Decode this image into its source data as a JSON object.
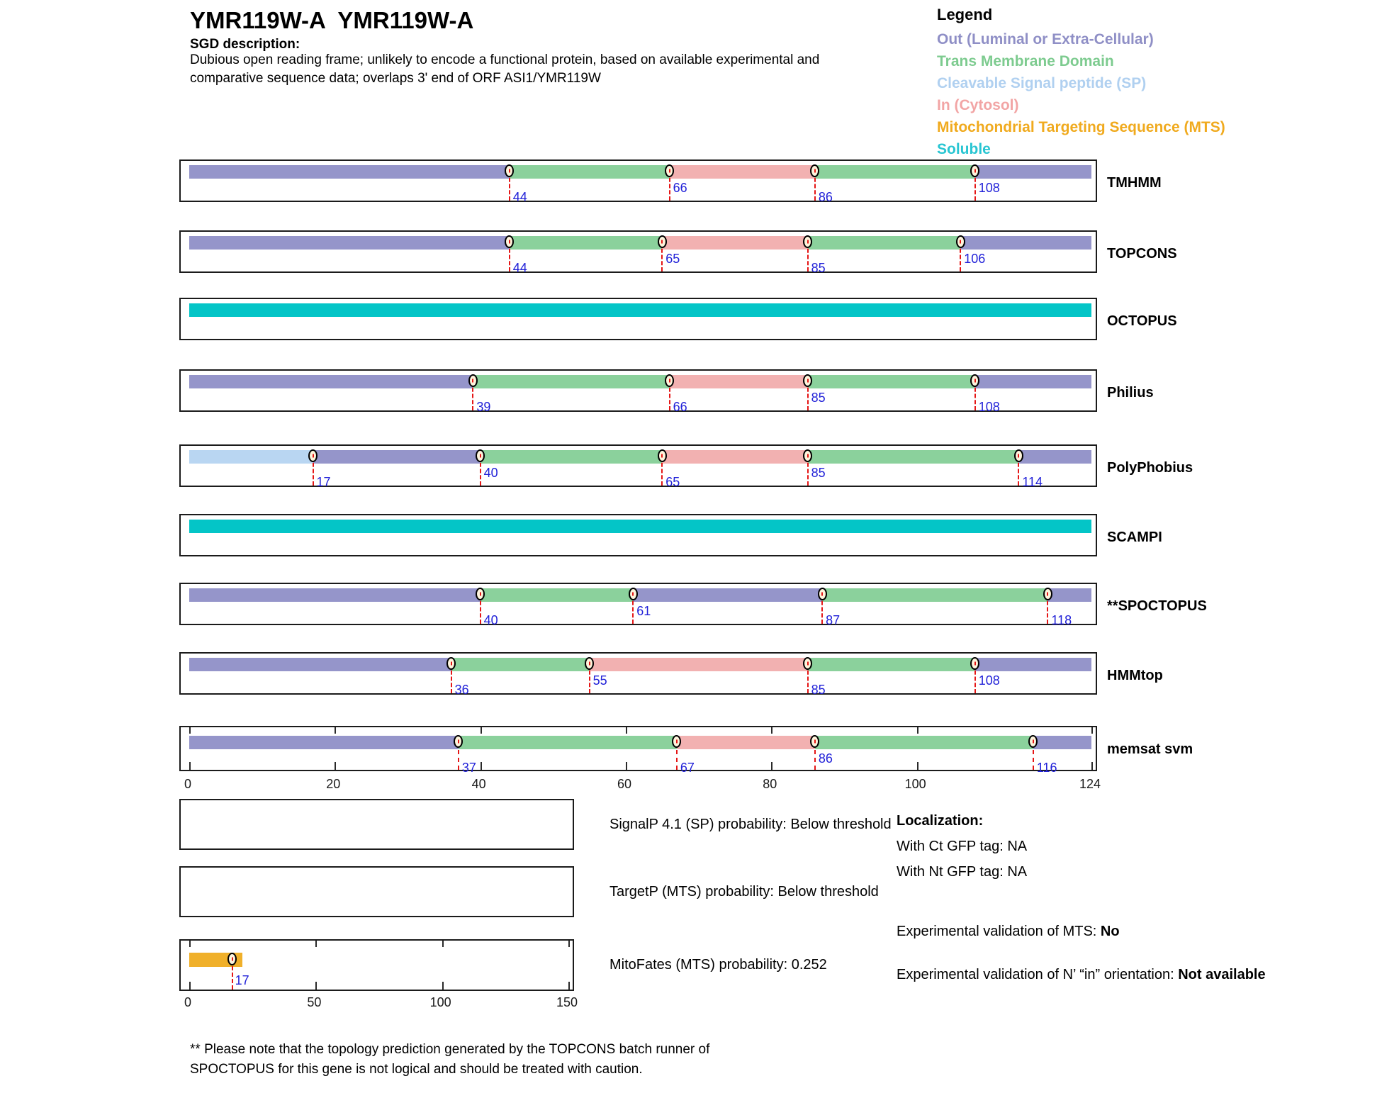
{
  "header": {
    "title": "YMR119W-A  YMR119W-A",
    "sgd_label": "SGD description:",
    "description_line1": "Dubious open reading frame; unlikely to encode a functional protein, based on available experimental and",
    "description_line2": "comparative sequence data; overlaps 3' end of ORF ASI1/YMR119W"
  },
  "legend": {
    "title": "Legend",
    "items": [
      {
        "key": "out",
        "label": "Out (Luminal or Extra-Cellular)",
        "color": "#8f8fc6"
      },
      {
        "key": "tm",
        "label": "Trans Membrane Domain",
        "color": "#7dcb8f"
      },
      {
        "key": "sp",
        "label": "Cleavable Signal peptide (SP)",
        "color": "#b0d0f0"
      },
      {
        "key": "in",
        "label": "In (Cytosol)",
        "color": "#f2a5a5"
      },
      {
        "key": "mts",
        "label": "Mitochondrial Targeting Sequence (MTS)",
        "color": "#f0aa1e"
      },
      {
        "key": "soluble",
        "label": "Soluble",
        "color": "#28c5d2"
      }
    ]
  },
  "chart_data": {
    "type": "topology-tracks",
    "axis": {
      "min": 0,
      "max": 124,
      "ticks": [
        0,
        20,
        40,
        60,
        80,
        100,
        124
      ]
    },
    "colors": {
      "out": "#9595ca",
      "tm": "#8bd19c",
      "sp": "#b9d6f2",
      "in": "#f2b1b1",
      "mts": "#f0b02a",
      "soluble": "#04c5c7"
    },
    "marker_fill": "#fdf4dc",
    "boundary_line_color": "#e51616",
    "boundary_number_color": "#2121d8",
    "tracks": [
      {
        "name": "TMHMM",
        "segments": [
          {
            "region": "out",
            "from": 0,
            "to": 44
          },
          {
            "region": "tm",
            "from": 44,
            "to": 66
          },
          {
            "region": "in",
            "from": 66,
            "to": 86
          },
          {
            "region": "tm",
            "from": 86,
            "to": 108
          },
          {
            "region": "out",
            "from": 108,
            "to": 124
          }
        ],
        "markers": [
          {
            "pos": 44,
            "level": "low"
          },
          {
            "pos": 66,
            "level": "high"
          },
          {
            "pos": 86,
            "level": "low"
          },
          {
            "pos": 108,
            "level": "high"
          }
        ]
      },
      {
        "name": "TOPCONS",
        "segments": [
          {
            "region": "out",
            "from": 0,
            "to": 44
          },
          {
            "region": "tm",
            "from": 44,
            "to": 65
          },
          {
            "region": "in",
            "from": 65,
            "to": 85
          },
          {
            "region": "tm",
            "from": 85,
            "to": 106
          },
          {
            "region": "out",
            "from": 106,
            "to": 124
          }
        ],
        "markers": [
          {
            "pos": 44,
            "level": "low"
          },
          {
            "pos": 65,
            "level": "high"
          },
          {
            "pos": 85,
            "level": "low"
          },
          {
            "pos": 106,
            "level": "high"
          }
        ]
      },
      {
        "name": "OCTOPUS",
        "segments": [
          {
            "region": "soluble",
            "from": 0,
            "to": 124
          }
        ],
        "markers": []
      },
      {
        "name": "Philius",
        "segments": [
          {
            "region": "out",
            "from": 0,
            "to": 39
          },
          {
            "region": "tm",
            "from": 39,
            "to": 66
          },
          {
            "region": "in",
            "from": 66,
            "to": 85
          },
          {
            "region": "tm",
            "from": 85,
            "to": 108
          },
          {
            "region": "out",
            "from": 108,
            "to": 124
          }
        ],
        "markers": [
          {
            "pos": 39,
            "level": "low"
          },
          {
            "pos": 66,
            "level": "low"
          },
          {
            "pos": 85,
            "level": "high"
          },
          {
            "pos": 108,
            "level": "low"
          }
        ]
      },
      {
        "name": "PolyPhobius",
        "segments": [
          {
            "region": "sp",
            "from": 0,
            "to": 17
          },
          {
            "region": "out",
            "from": 17,
            "to": 40
          },
          {
            "region": "tm",
            "from": 40,
            "to": 65
          },
          {
            "region": "in",
            "from": 65,
            "to": 85
          },
          {
            "region": "tm",
            "from": 85,
            "to": 114
          },
          {
            "region": "out",
            "from": 114,
            "to": 124
          }
        ],
        "markers": [
          {
            "pos": 17,
            "level": "low"
          },
          {
            "pos": 40,
            "level": "high"
          },
          {
            "pos": 65,
            "level": "low"
          },
          {
            "pos": 85,
            "level": "high"
          },
          {
            "pos": 114,
            "level": "low"
          }
        ]
      },
      {
        "name": "SCAMPI",
        "segments": [
          {
            "region": "soluble",
            "from": 0,
            "to": 124
          }
        ],
        "markers": []
      },
      {
        "name": "**SPOCTOPUS",
        "segments": [
          {
            "region": "out",
            "from": 0,
            "to": 40
          },
          {
            "region": "tm",
            "from": 40,
            "to": 61
          },
          {
            "region": "out",
            "from": 61,
            "to": 87
          },
          {
            "region": "tm",
            "from": 87,
            "to": 118
          },
          {
            "region": "out",
            "from": 118,
            "to": 124
          }
        ],
        "markers": [
          {
            "pos": 40,
            "level": "low"
          },
          {
            "pos": 61,
            "level": "high"
          },
          {
            "pos": 87,
            "level": "low"
          },
          {
            "pos": 118,
            "level": "low"
          }
        ]
      },
      {
        "name": "HMMtop",
        "segments": [
          {
            "region": "out",
            "from": 0,
            "to": 36
          },
          {
            "region": "tm",
            "from": 36,
            "to": 55
          },
          {
            "region": "in",
            "from": 55,
            "to": 85
          },
          {
            "region": "tm",
            "from": 85,
            "to": 108
          },
          {
            "region": "out",
            "from": 108,
            "to": 124
          }
        ],
        "markers": [
          {
            "pos": 36,
            "level": "low"
          },
          {
            "pos": 55,
            "level": "high"
          },
          {
            "pos": 85,
            "level": "low"
          },
          {
            "pos": 108,
            "level": "high"
          }
        ]
      },
      {
        "name": "memsat svm",
        "axis_ticks": true,
        "segments": [
          {
            "region": "out",
            "from": 0,
            "to": 37
          },
          {
            "region": "tm",
            "from": 37,
            "to": 67
          },
          {
            "region": "in",
            "from": 67,
            "to": 86
          },
          {
            "region": "tm",
            "from": 86,
            "to": 116
          },
          {
            "region": "out",
            "from": 116,
            "to": 124
          }
        ],
        "markers": [
          {
            "pos": 37,
            "level": "low"
          },
          {
            "pos": 67,
            "level": "low"
          },
          {
            "pos": 86,
            "level": "high"
          },
          {
            "pos": 116,
            "level": "low"
          }
        ]
      }
    ],
    "probability_plots": [
      {
        "caption": "SignalP 4.1 (SP) probability: Below threshold"
      },
      {
        "caption": "TargetP (MTS) probability: Below threshold"
      },
      {
        "caption": "MitoFates (MTS) probability: 0.252",
        "axis": {
          "min": 0,
          "max": 150,
          "ticks": [
            0,
            50,
            100,
            150
          ]
        },
        "bar": {
          "region": "mts",
          "start": 0,
          "end": 21,
          "marker": 17,
          "marker_label": "17"
        }
      }
    ]
  },
  "localization": {
    "title": "Localization:",
    "ct_line": "With Ct GFP tag: NA",
    "nt_line": "With Nt GFP tag: NA",
    "mts_label": "Experimental validation of MTS: ",
    "mts_value": "No",
    "orientation_label": "Experimental validation of N’ “in” orientation: ",
    "orientation_value": "Not available"
  },
  "footnote": {
    "line1": "** Please note that the topology prediction generated by the TOPCONS batch runner of",
    "line2": "SPOCTOPUS for this gene is not logical and should be treated with caution."
  }
}
